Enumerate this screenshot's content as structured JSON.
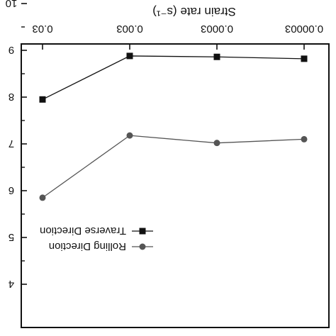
{
  "chart_data": {
    "type": "line",
    "orientation": "rotated-180",
    "xlabel": "Strain rate (s⁻¹)",
    "x_tick_labels": [
      "0.00003",
      "0.0003",
      "0.003",
      "0.03"
    ],
    "x_scale": "log",
    "y_tick_labels": [
      "4",
      "5",
      "6",
      "7",
      "8",
      "9",
      "10"
    ],
    "ylim": [
      4,
      10
    ],
    "series": [
      {
        "name": "Rolling Direction",
        "marker": "circle",
        "color": "#555555",
        "x": [
          3e-05,
          0.0003,
          0.003,
          0.03
        ],
        "y": [
          7.1,
          7.02,
          7.18,
          5.85
        ]
      },
      {
        "name": "Traverse Direction",
        "marker": "square",
        "color": "#111111",
        "x": [
          3e-05,
          0.0003,
          0.003,
          0.03
        ],
        "y": [
          8.82,
          8.86,
          8.88,
          7.95
        ]
      }
    ],
    "legend_position": "top-left"
  }
}
